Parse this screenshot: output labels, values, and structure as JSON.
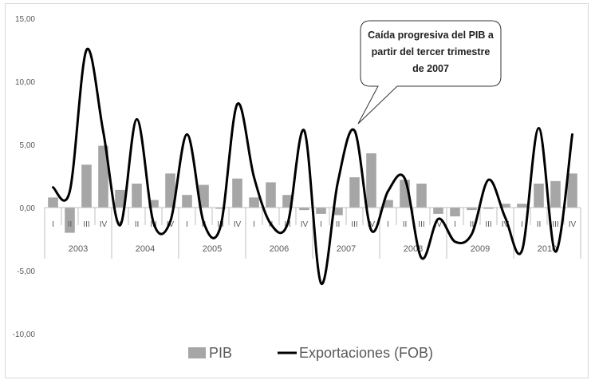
{
  "chart_data": {
    "type": "bar",
    "ylim": [
      -10,
      15
    ],
    "yticks": [
      "15,00",
      "10,00",
      "5,00",
      "0,00",
      "-5,00",
      "-10,00"
    ],
    "ytick_values": [
      15,
      10,
      5,
      0,
      -5,
      -10
    ],
    "years": [
      "2003",
      "2004",
      "2005",
      "2006",
      "2007",
      "2008",
      "2009",
      "2010"
    ],
    "quarters": [
      "I",
      "II",
      "III",
      "IV"
    ],
    "series": [
      {
        "name": "PIB",
        "type": "bar",
        "color": "#a6a6a6",
        "values": [
          0.8,
          -2.0,
          3.4,
          4.9,
          1.4,
          1.9,
          0.6,
          2.7,
          1.0,
          1.8,
          -0.1,
          2.3,
          0.8,
          2.0,
          1.0,
          -0.2,
          -0.5,
          -0.6,
          2.4,
          4.3,
          0.6,
          2.2,
          1.9,
          -0.5,
          -0.7,
          -0.2,
          -0.1,
          0.3,
          0.3,
          1.9,
          2.1,
          2.7
        ]
      },
      {
        "name": "Exportaciones (FOB)",
        "type": "line",
        "color": "#000000",
        "values": [
          1.6,
          1.3,
          12.5,
          6.0,
          -1.4,
          7.0,
          -1.2,
          -1.1,
          5.8,
          -1.2,
          -1.5,
          8.2,
          2.4,
          -1.3,
          -1.3,
          6.1,
          -6.0,
          2.0,
          6.1,
          -1.8,
          1.3,
          2.3,
          -4.0,
          -0.9,
          -2.7,
          -2.1,
          2.2,
          -0.8,
          -3.4,
          6.3,
          -3.5,
          5.8
        ]
      }
    ],
    "legend": [
      {
        "label": "PIB",
        "color": "#a6a6a6",
        "kind": "bar"
      },
      {
        "label": "Exportaciones (FOB)",
        "color": "#000000",
        "kind": "line"
      }
    ],
    "legend_position": "bottom",
    "grid": false,
    "annotation": {
      "lines": [
        "Caída progresiva del PIB a",
        "partir del tercer trimestre",
        "de 2007"
      ]
    }
  }
}
